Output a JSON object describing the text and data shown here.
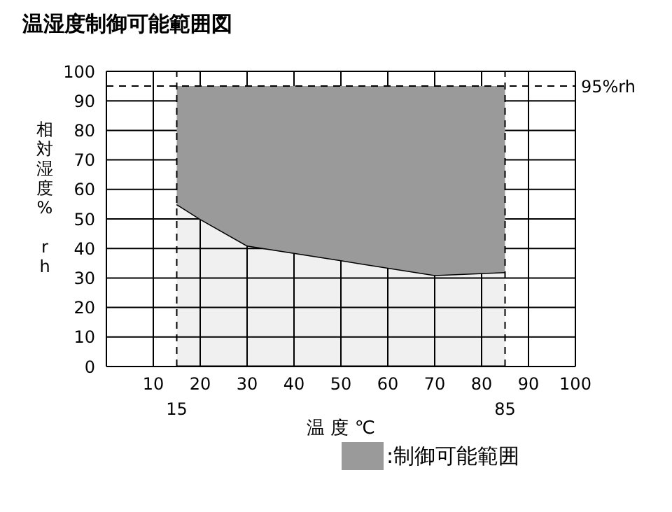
{
  "chart_data": {
    "type": "area",
    "title": "温湿度制御可能範囲図",
    "xlabel": "温 度 ℃",
    "ylabel": "相対湿度% rh",
    "x": [
      15,
      20,
      30,
      50,
      70,
      85
    ],
    "stacked": true,
    "series": [
      {
        "color": "#000000",
        "values": [
          55,
          50,
          41,
          36,
          31,
          32
        ]
      },
      {
        "name": ":制御可能範囲",
        "color": "#9a9a9a",
        "values": [
          40,
          45,
          54,
          59,
          64,
          63
        ]
      }
    ],
    "xlim": [
      0,
      100
    ],
    "xticks": [
      10,
      20,
      30,
      40,
      50,
      60,
      70,
      80,
      90,
      100
    ],
    "ylim": [
      0,
      100
    ],
    "yticks": [
      0,
      10,
      20,
      30,
      40,
      50,
      60,
      70,
      80,
      90,
      100
    ],
    "ref_lines": [
      {
        "axis": "x",
        "value": 15,
        "label": "15",
        "line_style": "dashed"
      },
      {
        "axis": "x",
        "value": 85,
        "label": "85",
        "line_style": "dashed"
      },
      {
        "axis": "y",
        "value": 95,
        "label": "95%rh",
        "line_style": "dashed"
      }
    ],
    "grid": true,
    "legend": "bottom right"
  }
}
